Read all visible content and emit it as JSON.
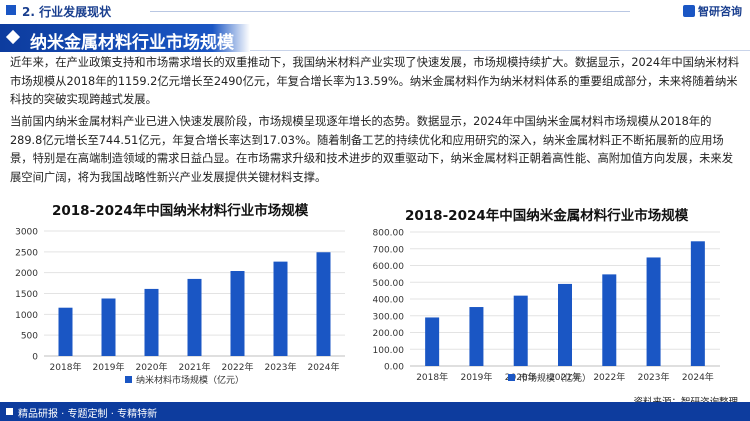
{
  "header": {
    "section": "2. 行业发展现状",
    "brand": "智研咨询"
  },
  "banner": {
    "title": "纳米金属材料行业市场规模"
  },
  "paragraphs": [
    "近年来，在产业政策支持和市场需求增长的双重推动下，我国纳米材料产业实现了快速发展，市场规模持续扩大。数据显示，2024年中国纳米材料市场规模从2018年的1159.2亿元增长至2490亿元，年复合增长率为13.59%。纳米金属材料作为纳米材料体系的重要组成部分，未来将随着纳米科技的突破实现跨越式发展。",
    "当前国内纳米金属材料产业已进入快速发展阶段，市场规模呈现逐年增长的态势。数据显示，2024年中国纳米金属材料市场规模从2018年的289.8亿元增长至744.51亿元，年复合增长率达到17.03%。随着制备工艺的持续优化和应用研究的深入，纳米金属材料正不断拓展新的应用场景，特别是在高端制造领域的需求日益凸显。在市场需求升级和技术进步的双重驱动下，纳米金属材料正朝着高性能、高附加值方向发展，未来发展空间广阔，将为我国战略性新兴产业发展提供关键材料支撑。"
  ],
  "chart_data": [
    {
      "type": "bar",
      "title": "2018-2024年中国纳米材料行业市场规模",
      "categories": [
        "2018年",
        "2019年",
        "2020年",
        "2021年",
        "2022年",
        "2023年",
        "2024年"
      ],
      "series": [
        {
          "name": "纳米材料市场规模（亿元）",
          "values": [
            1159.2,
            1380,
            1610,
            1850,
            2040,
            2265,
            2490
          ],
          "color": "#1a56c4"
        }
      ],
      "ylim": [
        0,
        3000
      ],
      "yticks": [
        "0",
        "500",
        "1000",
        "1500",
        "2000",
        "2500",
        "3000"
      ],
      "grid": true,
      "legend": "bottom"
    },
    {
      "type": "bar",
      "title": "2018-2024年中国纳米金属材料行业市场规模",
      "categories": [
        "2018年",
        "2019年",
        "2020年",
        "2021年",
        "2022年",
        "2023年",
        "2024年"
      ],
      "series": [
        {
          "name": "市场规模（亿元）",
          "values": [
            289.8,
            352,
            420,
            490,
            547,
            648,
            744.51
          ],
          "color": "#1a56c4"
        }
      ],
      "ylim": [
        0,
        800
      ],
      "yticks": [
        "0.00",
        "100.00",
        "200.00",
        "300.00",
        "400.00",
        "500.00",
        "600.00",
        "700.00",
        "800.00"
      ],
      "grid": true,
      "legend": "bottom"
    }
  ],
  "footer": {
    "tagline": "精品研报 · 专题定制 · 专精特新",
    "source": "资料来源：智研咨询整理"
  }
}
